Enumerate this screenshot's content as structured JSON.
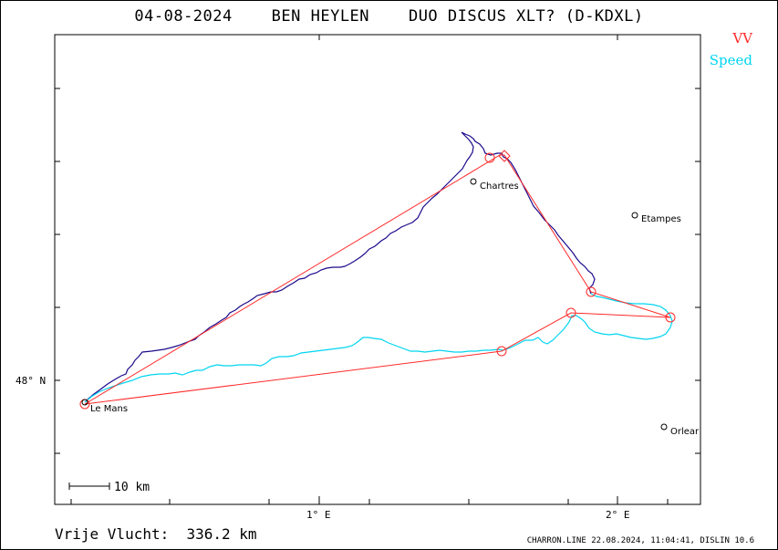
{
  "title": "04-08-2024    BEN HEYLEN    DUO DISCUS XLT? (D-KDXL)",
  "legend": {
    "vv": "VV",
    "speed": "Speed",
    "vv_color": "#ff2a2a",
    "speed_color": "#00d5f0"
  },
  "axes": {
    "x_ticks": [
      "1° E",
      "2° E"
    ],
    "y_ticks": [
      "48° N"
    ]
  },
  "towns": [
    "Chartres",
    "Etampes",
    "Le Mans",
    "Orlear"
  ],
  "scale_label": "10  km",
  "footer": {
    "distance": "Vrije Vlucht:  336.2 km",
    "credit": "CHARRON.LINE 22.08.2024, 11:04:41, DISLIN 10.6"
  },
  "track_color": "#1a0a8a"
}
